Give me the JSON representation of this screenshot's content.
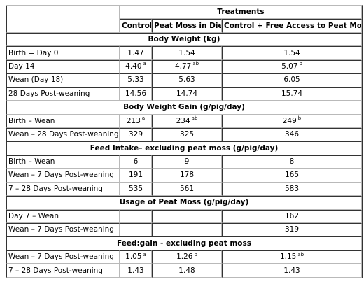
{
  "header": {
    "treatments": "Treatments",
    "columns": [
      "Control",
      "Peat Moss in Diet",
      "Control + Free Access to Peat Moss"
    ]
  },
  "sections": [
    {
      "title": "Body Weight (kg)",
      "rows": [
        {
          "label": "Birth = Day 0",
          "cells": [
            {
              "v": "1.47",
              "s": ""
            },
            {
              "v": "1.54",
              "s": ""
            },
            {
              "v": "1.54",
              "s": ""
            }
          ]
        },
        {
          "label": "Day 14",
          "cells": [
            {
              "v": "4.40",
              "s": "a"
            },
            {
              "v": "4.77",
              "s": "ab"
            },
            {
              "v": "5.07",
              "s": "b"
            }
          ]
        },
        {
          "label": "Wean (Day 18)",
          "cells": [
            {
              "v": "5.33",
              "s": ""
            },
            {
              "v": "5.63",
              "s": ""
            },
            {
              "v": "6.05",
              "s": ""
            }
          ]
        },
        {
          "label": "28 Days Post-weaning",
          "cells": [
            {
              "v": "14.56",
              "s": ""
            },
            {
              "v": "14.74",
              "s": ""
            },
            {
              "v": "15.74",
              "s": ""
            }
          ]
        }
      ]
    },
    {
      "title": "Body Weight Gain (g/pig/day)",
      "rows": [
        {
          "label": "Birth – Wean",
          "cells": [
            {
              "v": "213",
              "s": "a"
            },
            {
              "v": "234",
              "s": "ab"
            },
            {
              "v": "249",
              "s": "b"
            }
          ]
        },
        {
          "label": "Wean – 28 Days Post-weaning",
          "cells": [
            {
              "v": "329",
              "s": ""
            },
            {
              "v": "325",
              "s": ""
            },
            {
              "v": "346",
              "s": ""
            }
          ]
        }
      ]
    },
    {
      "title": "Feed Intake– excluding peat moss (g/pig/day)",
      "rows": [
        {
          "label": "Birth – Wean",
          "cells": [
            {
              "v": "6",
              "s": ""
            },
            {
              "v": "9",
              "s": ""
            },
            {
              "v": "8",
              "s": ""
            }
          ]
        },
        {
          "label": "Wean – 7 Days Post-weaning",
          "cells": [
            {
              "v": "191",
              "s": ""
            },
            {
              "v": "178",
              "s": ""
            },
            {
              "v": "165",
              "s": ""
            }
          ]
        },
        {
          "label": "7 – 28 Days Post-weaning",
          "cells": [
            {
              "v": "535",
              "s": ""
            },
            {
              "v": "561",
              "s": ""
            },
            {
              "v": "583",
              "s": ""
            }
          ]
        }
      ]
    },
    {
      "title": "Usage of Peat Moss (g/pig/day)",
      "rows": [
        {
          "label": "Day 7 – Wean",
          "cells": [
            {
              "v": "",
              "s": ""
            },
            {
              "v": "",
              "s": ""
            },
            {
              "v": "162",
              "s": ""
            }
          ]
        },
        {
          "label": "Wean – 7 Days Post-weaning",
          "cells": [
            {
              "v": "",
              "s": ""
            },
            {
              "v": "",
              "s": ""
            },
            {
              "v": "319",
              "s": ""
            }
          ]
        }
      ]
    },
    {
      "title": "Feed:gain - excluding peat moss",
      "rows": [
        {
          "label": "Wean – 7 Days Post-weaning",
          "cells": [
            {
              "v": "1.05",
              "s": "a"
            },
            {
              "v": "1.26",
              "s": "b"
            },
            {
              "v": "1.15",
              "s": "ab"
            }
          ]
        },
        {
          "label": "7 – 28 Days Post-weaning",
          "cells": [
            {
              "v": "1.43",
              "s": ""
            },
            {
              "v": "1.48",
              "s": ""
            },
            {
              "v": "1.43",
              "s": ""
            }
          ]
        }
      ]
    }
  ]
}
